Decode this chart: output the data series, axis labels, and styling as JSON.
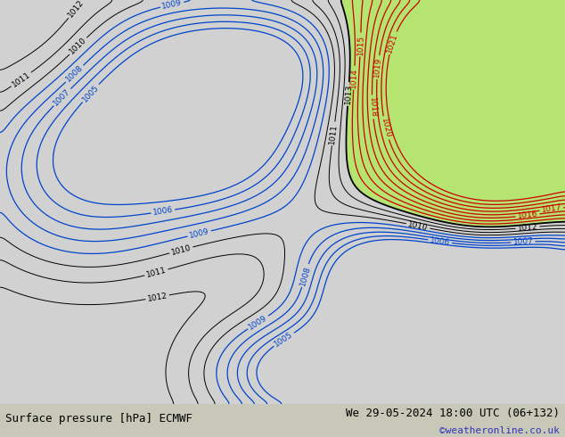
{
  "title_left": "Surface pressure [hPa] ECMWF",
  "title_right": "We 29-05-2024 18:00 UTC (06+132)",
  "credit": "©weatheronline.co.uk",
  "map_bg_sea": "#d0d0d0",
  "map_bg_land": "#b8e878",
  "bottom_bar_color": "#c8c8b8",
  "text_color": "#000000",
  "credit_color": "#3333bb",
  "fig_width": 6.34,
  "fig_height": 4.9,
  "dpi": 100
}
